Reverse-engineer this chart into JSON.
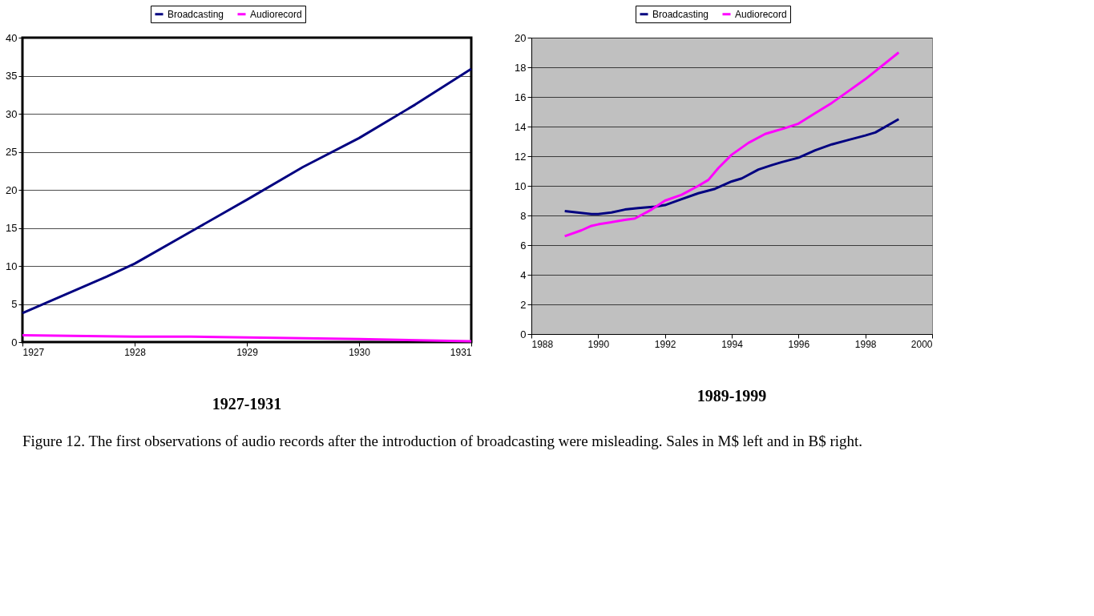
{
  "chart_data": [
    {
      "type": "line",
      "title": "1927-1931",
      "xlim": [
        1927,
        1931
      ],
      "xticks": [
        1927,
        1928,
        1929,
        1930,
        1931
      ],
      "ylim": [
        0,
        40
      ],
      "yticks": [
        0,
        5,
        10,
        15,
        20,
        25,
        30,
        35,
        40
      ],
      "grid": "y",
      "legend": "top",
      "line_style": "solid",
      "annotations": [
        "Figure 12. The first observations of audio records after the introduction of broadcasting were misleading. Sales in M$ left and in B$ right."
      ],
      "series": [
        {
          "name": "Broadcasting",
          "color": "#000080",
          "x": [
            1927,
            1927.75,
            1928,
            1928.5,
            1929,
            1929.5,
            1930,
            1930.5,
            1931
          ],
          "values": [
            3.8,
            8.6,
            10.3,
            14.5,
            18.7,
            23,
            26.8,
            31.2,
            35.9
          ]
        },
        {
          "name": "Audiorecord",
          "color": "#ff00ff",
          "x": [
            1927,
            1928,
            1928.5,
            1929,
            1930,
            1931
          ],
          "values": [
            0.9,
            0.7,
            0.7,
            0.6,
            0.4,
            0.1
          ]
        }
      ]
    },
    {
      "type": "line",
      "title": "1989-1999",
      "xlim": [
        1988,
        2000
      ],
      "xticks": [
        1988,
        1990,
        1992,
        1994,
        1996,
        1998,
        2000
      ],
      "ylim": [
        0,
        20
      ],
      "yticks": [
        0,
        2,
        4,
        6,
        8,
        10,
        12,
        14,
        16,
        18,
        20
      ],
      "grid": "y",
      "legend": "top",
      "line_style": "solid",
      "series": [
        {
          "name": "Broadcasting",
          "color": "#000080",
          "x": [
            1989,
            1989.8,
            1990,
            1990.4,
            1990.8,
            1991.2,
            1991.7,
            1992,
            1992.5,
            1993,
            1993.5,
            1994,
            1994.3,
            1994.8,
            1995.2,
            1995.5,
            1996,
            1996.5,
            1997,
            1997.5,
            1998,
            1998.3,
            1999
          ],
          "values": [
            8.3,
            8.1,
            8.1,
            8.2,
            8.4,
            8.5,
            8.6,
            8.7,
            9.1,
            9.5,
            9.8,
            10.3,
            10.5,
            11.1,
            11.4,
            11.6,
            11.9,
            12.4,
            12.8,
            13.1,
            13.4,
            13.6,
            14.5
          ]
        },
        {
          "name": "Audiorecord",
          "color": "#ff00ff",
          "x": [
            1989,
            1989.5,
            1989.8,
            1990,
            1990.8,
            1991.1,
            1991.6,
            1992,
            1992.5,
            1993,
            1993.3,
            1993.6,
            1994,
            1994.5,
            1995,
            1995.3,
            1995.6,
            1996,
            1996.5,
            1997,
            1997.5,
            1998,
            1999
          ],
          "values": [
            6.6,
            7.0,
            7.3,
            7.4,
            7.7,
            7.8,
            8.4,
            9.0,
            9.4,
            10.0,
            10.4,
            11.2,
            12.1,
            12.9,
            13.5,
            13.7,
            13.9,
            14.2,
            14.9,
            15.6,
            16.4,
            17.2,
            19.0
          ]
        }
      ]
    }
  ]
}
